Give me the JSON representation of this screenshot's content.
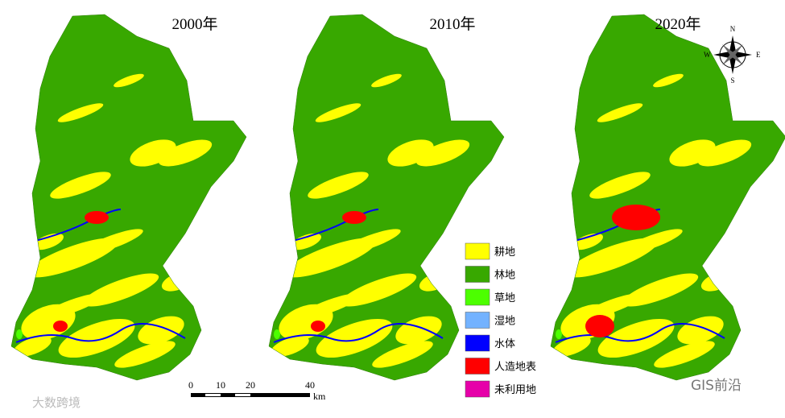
{
  "maps": [
    {
      "title": "2000年"
    },
    {
      "title": "2010年"
    },
    {
      "title": "2020年"
    }
  ],
  "legend": [
    {
      "label": "耕地",
      "color": "#ffff00"
    },
    {
      "label": "林地",
      "color": "#38a800"
    },
    {
      "label": "草地",
      "color": "#4cff00"
    },
    {
      "label": "湿地",
      "color": "#73b2ff"
    },
    {
      "label": "水体",
      "color": "#0000ff"
    },
    {
      "label": "人造地表",
      "color": "#ff0000"
    },
    {
      "label": "未利用地",
      "color": "#e600a9"
    }
  ],
  "scale_bar": {
    "ticks": [
      "0",
      "10",
      "20",
      "40"
    ],
    "unit": "km"
  },
  "compass": {
    "n": "N",
    "s": "S",
    "e": "E",
    "w": "W"
  },
  "watermarks": {
    "left": "大数跨境",
    "right": "GIS前沿"
  }
}
